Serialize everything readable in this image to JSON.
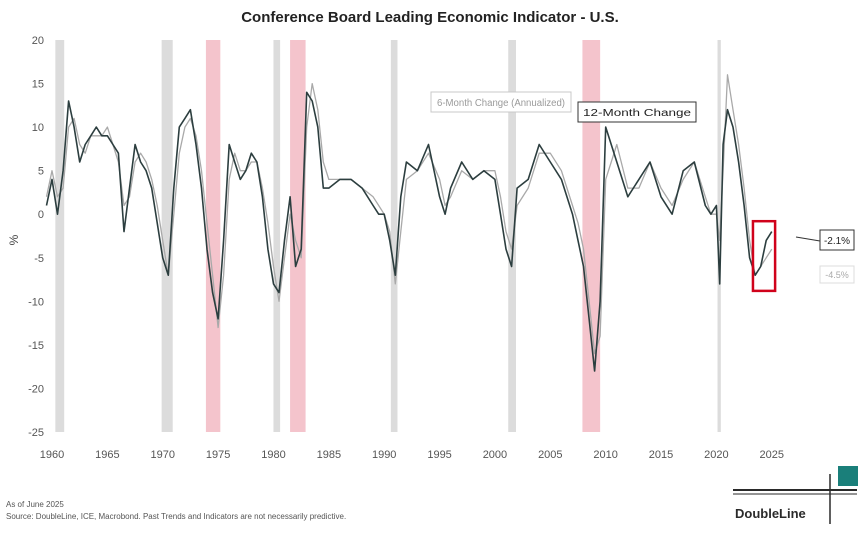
{
  "colors": {
    "recession_grey": "#dcdcdc",
    "recession_pink": "#f4c4cc",
    "series_6m": "#2c3e3f",
    "series_12m": "#a9a9a9",
    "highlight_red": "#d0021b",
    "brand_teal": "#1a7f7a"
  },
  "chart_data": {
    "type": "line",
    "title": "Conference Board Leading Economic Indicator - U.S.",
    "ylabel": "%",
    "xlabel": "",
    "xlim": [
      1960,
      2028
    ],
    "ylim": [
      -25,
      20
    ],
    "yticks": [
      20,
      15,
      10,
      5,
      0,
      -5,
      -10,
      -15,
      -20,
      -25
    ],
    "xticks": [
      1960,
      1965,
      1970,
      1975,
      1980,
      1985,
      1990,
      1995,
      2000,
      2005,
      2010,
      2015,
      2020,
      2025
    ],
    "recessions": [
      {
        "start": 1960.3,
        "end": 1961.1,
        "style": "grey"
      },
      {
        "start": 1969.9,
        "end": 1970.9,
        "style": "grey"
      },
      {
        "start": 1973.9,
        "end": 1975.2,
        "style": "pink"
      },
      {
        "start": 1980.0,
        "end": 1980.6,
        "style": "grey"
      },
      {
        "start": 1981.5,
        "end": 1982.9,
        "style": "pink"
      },
      {
        "start": 1990.6,
        "end": 1991.2,
        "style": "grey"
      },
      {
        "start": 2001.2,
        "end": 2001.9,
        "style": "grey"
      },
      {
        "start": 2007.9,
        "end": 2009.5,
        "style": "pink"
      },
      {
        "start": 2020.1,
        "end": 2020.4,
        "style": "grey"
      }
    ],
    "series": [
      {
        "name": "6-Month Change (Annualized)",
        "x": [
          1959.5,
          1960.0,
          1960.5,
          1961.0,
          1961.5,
          1962.0,
          1962.5,
          1963.0,
          1963.5,
          1964.0,
          1964.5,
          1965.0,
          1965.5,
          1966.0,
          1966.5,
          1967.0,
          1967.5,
          1968.0,
          1968.5,
          1969.0,
          1969.5,
          1970.0,
          1970.5,
          1971.0,
          1971.5,
          1972.0,
          1972.5,
          1973.0,
          1973.5,
          1974.0,
          1974.5,
          1975.0,
          1975.5,
          1976.0,
          1976.5,
          1977.0,
          1977.5,
          1978.0,
          1978.5,
          1979.0,
          1979.5,
          1980.0,
          1980.5,
          1981.0,
          1981.5,
          1982.0,
          1982.5,
          1983.0,
          1983.5,
          1984.0,
          1984.5,
          1985.0,
          1986.0,
          1987.0,
          1988.0,
          1989.0,
          1989.5,
          1990.0,
          1990.5,
          1991.0,
          1991.5,
          1992.0,
          1993.0,
          1994.0,
          1995.0,
          1995.5,
          1996.0,
          1997.0,
          1998.0,
          1999.0,
          2000.0,
          2000.5,
          2001.0,
          2001.5,
          2002.0,
          2003.0,
          2004.0,
          2005.0,
          2006.0,
          2007.0,
          2007.5,
          2008.0,
          2008.5,
          2009.0,
          2009.5,
          2010.0,
          2011.0,
          2012.0,
          2013.0,
          2014.0,
          2015.0,
          2016.0,
          2017.0,
          2018.0,
          2019.0,
          2019.5,
          2020.0,
          2020.3,
          2020.6,
          2021.0,
          2021.5,
          2022.0,
          2022.5,
          2023.0,
          2023.5,
          2024.0,
          2024.5,
          2025.0
        ],
        "values": [
          1,
          4,
          0,
          5,
          13,
          10,
          6,
          8,
          9,
          10,
          9,
          9,
          8,
          7,
          -2,
          3,
          8,
          6,
          5,
          3,
          -1,
          -5,
          -7,
          3,
          10,
          11,
          12,
          8,
          3,
          -4,
          -9,
          -12,
          -3,
          8,
          6,
          4,
          5,
          7,
          6,
          2,
          -4,
          -8,
          -9,
          -3,
          2,
          -6,
          -4,
          14,
          13,
          10,
          3,
          3,
          4,
          4,
          3,
          1,
          0,
          0,
          -3,
          -7,
          2,
          6,
          5,
          8,
          2,
          0,
          3,
          6,
          4,
          5,
          4,
          0,
          -4,
          -6,
          3,
          4,
          8,
          6,
          4,
          0,
          -3,
          -6,
          -12,
          -18,
          -10,
          10,
          6,
          2,
          4,
          6,
          2,
          0,
          5,
          6,
          1,
          0,
          1,
          -8,
          8,
          12,
          10,
          6,
          1,
          -5,
          -7,
          -6,
          -3,
          -2
        ]
      },
      {
        "name": "12-Month Change",
        "x": [
          1959.5,
          1960.0,
          1960.5,
          1961.0,
          1961.5,
          1962.0,
          1962.5,
          1963.0,
          1963.5,
          1964.0,
          1964.5,
          1965.0,
          1965.5,
          1966.0,
          1966.5,
          1967.0,
          1967.5,
          1968.0,
          1968.5,
          1969.0,
          1969.5,
          1970.0,
          1970.5,
          1971.0,
          1971.5,
          1972.0,
          1972.5,
          1973.0,
          1973.5,
          1974.0,
          1974.5,
          1975.0,
          1975.5,
          1976.0,
          1976.5,
          1977.0,
          1977.5,
          1978.0,
          1978.5,
          1979.0,
          1979.5,
          1980.0,
          1980.5,
          1981.0,
          1981.5,
          1982.0,
          1982.5,
          1983.0,
          1983.5,
          1984.0,
          1984.5,
          1985.0,
          1986.0,
          1987.0,
          1988.0,
          1989.0,
          1989.5,
          1990.0,
          1990.5,
          1991.0,
          1991.5,
          1992.0,
          1993.0,
          1994.0,
          1995.0,
          1995.5,
          1996.0,
          1997.0,
          1998.0,
          1999.0,
          2000.0,
          2000.5,
          2001.0,
          2001.5,
          2002.0,
          2003.0,
          2004.0,
          2005.0,
          2006.0,
          2007.0,
          2007.5,
          2008.0,
          2008.5,
          2009.0,
          2009.5,
          2010.0,
          2011.0,
          2012.0,
          2013.0,
          2014.0,
          2015.0,
          2016.0,
          2017.0,
          2018.0,
          2019.0,
          2019.5,
          2020.0,
          2020.3,
          2020.6,
          2021.0,
          2021.5,
          2022.0,
          2022.5,
          2023.0,
          2023.5,
          2024.0,
          2024.5,
          2025.0
        ],
        "values": [
          2,
          5,
          2,
          3,
          10,
          11,
          8,
          7,
          9,
          9,
          9,
          10,
          8,
          6,
          1,
          2,
          6,
          7,
          6,
          4,
          1,
          -3,
          -7,
          0,
          7,
          10,
          11,
          9,
          5,
          -1,
          -7,
          -13,
          -7,
          4,
          7,
          5,
          5,
          6,
          6,
          3,
          -1,
          -6,
          -10,
          -5,
          0,
          -3,
          -5,
          10,
          15,
          12,
          6,
          4,
          4,
          4,
          3,
          2,
          1,
          0,
          -2,
          -8,
          -2,
          4,
          5,
          7,
          4,
          1,
          2,
          5,
          4,
          5,
          5,
          2,
          -2,
          -4,
          1,
          3,
          7,
          7,
          5,
          1,
          -1,
          -4,
          -10,
          -16,
          -14,
          4,
          8,
          3,
          3,
          6,
          3,
          1,
          4,
          6,
          2,
          0,
          0,
          -3,
          5,
          16,
          12,
          8,
          3,
          -3,
          -7,
          -6,
          -5,
          -4
        ]
      }
    ],
    "legend": [
      {
        "label": "6-Month Change (Annualized)",
        "style": "faint"
      },
      {
        "label": "12-Month Change",
        "style": "boxed"
      }
    ],
    "annotations": [
      {
        "label": "-2.1%",
        "style": "boxed"
      },
      {
        "label": "-4.5%",
        "style": "faint"
      }
    ]
  },
  "footnote": {
    "date_line": "As of June 2025",
    "source_line": "Source: DoubleLine, ICE, Macrobond. Past Trends and Indicators are not necessarily predictive."
  },
  "logo": {
    "text": "DoubleLine"
  }
}
